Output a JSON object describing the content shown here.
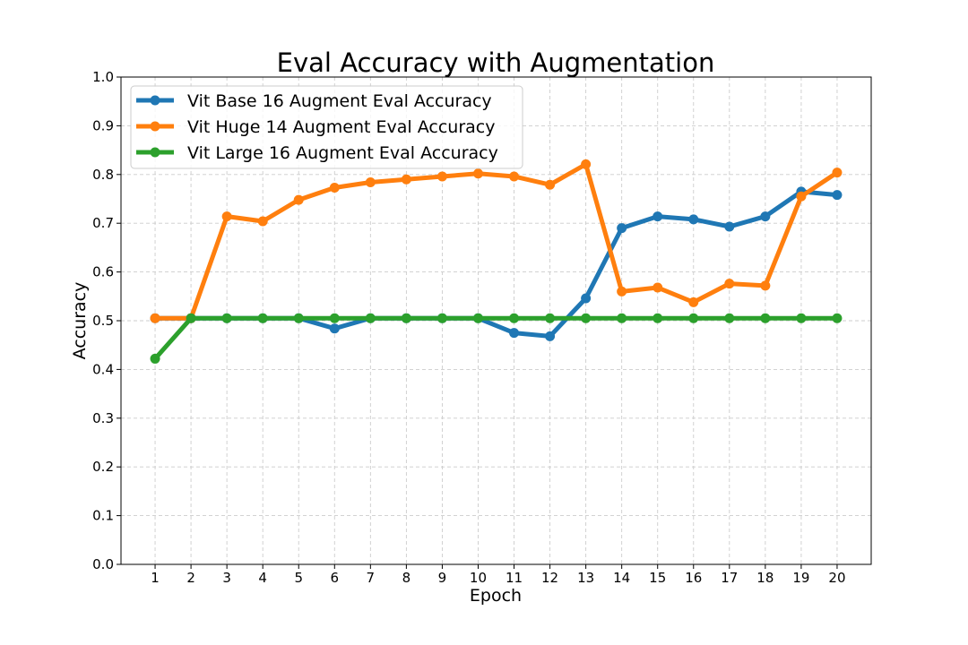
{
  "chart_data": {
    "type": "line",
    "title": "Eval Accuracy with Augmentation",
    "xlabel": "Epoch",
    "ylabel": "Accuracy",
    "x": [
      1,
      2,
      3,
      4,
      5,
      6,
      7,
      8,
      9,
      10,
      11,
      12,
      13,
      14,
      15,
      16,
      17,
      18,
      19,
      20
    ],
    "xlim": [
      0.05,
      20.95
    ],
    "ylim": [
      0.0,
      1.0
    ],
    "yticks": [
      0.0,
      0.1,
      0.2,
      0.3,
      0.4,
      0.5,
      0.6,
      0.7,
      0.8,
      0.9,
      1.0
    ],
    "grid": true,
    "legend": "top-left",
    "series": [
      {
        "name": "Vit Base 16 Augment Eval Accuracy",
        "color": "#1f77b4",
        "values": [
          0.505,
          0.505,
          0.505,
          0.505,
          0.505,
          0.484,
          0.505,
          0.505,
          0.505,
          0.505,
          0.475,
          0.468,
          0.546,
          0.69,
          0.714,
          0.708,
          0.693,
          0.714,
          0.765,
          0.758
        ]
      },
      {
        "name": "Vit Huge 14 Augment Eval Accuracy",
        "color": "#ff7f0e",
        "values": [
          0.505,
          0.505,
          0.714,
          0.704,
          0.748,
          0.773,
          0.784,
          0.79,
          0.796,
          0.802,
          0.796,
          0.779,
          0.821,
          0.56,
          0.568,
          0.538,
          0.576,
          0.572,
          0.755,
          0.804
        ]
      },
      {
        "name": "Vit Large 16 Augment Eval Accuracy",
        "color": "#2ca02c",
        "values": [
          0.422,
          0.505,
          0.505,
          0.505,
          0.505,
          0.505,
          0.505,
          0.505,
          0.505,
          0.505,
          0.505,
          0.505,
          0.505,
          0.505,
          0.505,
          0.505,
          0.505,
          0.505,
          0.505,
          0.505
        ]
      }
    ]
  }
}
